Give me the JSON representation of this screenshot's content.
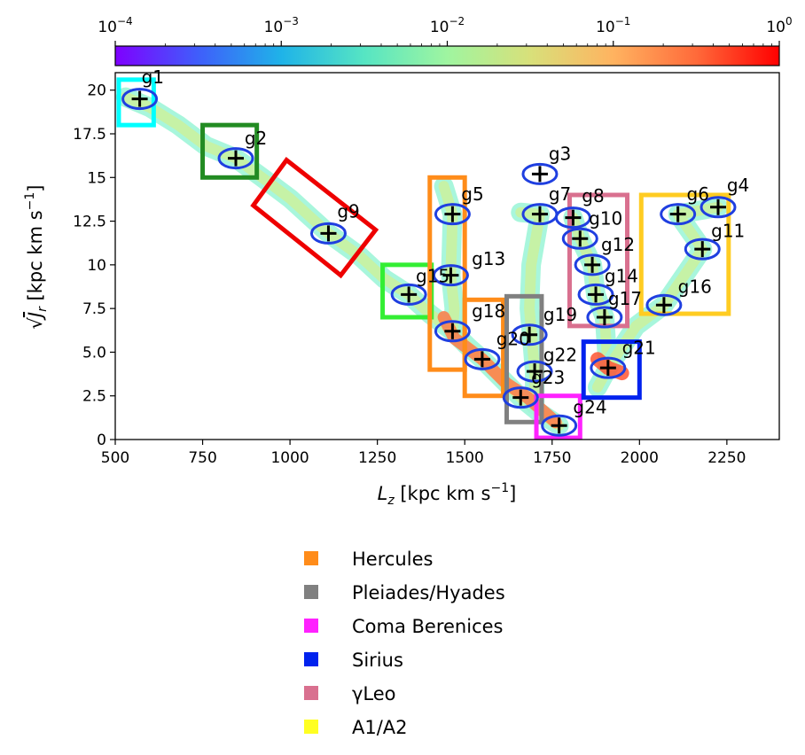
{
  "chart_data": {
    "type": "scatter",
    "xlabel": "L_z [kpc km s^-1]",
    "ylabel": "sqrt(J_r) [kpc km s^-1]",
    "xlim": [
      500,
      2400
    ],
    "ylim": [
      0,
      21
    ],
    "x_ticks": [
      500,
      750,
      1000,
      1250,
      1500,
      1750,
      2000,
      2250
    ],
    "y_ticks": [
      0,
      2.5,
      5.0,
      7.5,
      10,
      12.5,
      15,
      17.5,
      20
    ],
    "colorbar": {
      "scale": "log",
      "range": [
        0.0001,
        1
      ],
      "tick_labels": [
        {
          "base": "10",
          "exp": "−4",
          "value": 0.0001
        },
        {
          "base": "10",
          "exp": "−3",
          "value": 0.001
        },
        {
          "base": "10",
          "exp": "−2",
          "value": 0.01
        },
        {
          "base": "10",
          "exp": "−1",
          "value": 0.1
        },
        {
          "base": "10",
          "exp": "0",
          "value": 1
        }
      ],
      "colors": [
        "#7f00ff",
        "#3f5efb",
        "#1fb3e8",
        "#56e5c3",
        "#9ff5a0",
        "#d8e07a",
        "#ffb360",
        "#ff6a3a",
        "#ff0000"
      ]
    },
    "groups": [
      {
        "label": "g1",
        "x": 570,
        "y": 19.5,
        "lx": 575,
        "ly": 20.4
      },
      {
        "label": "g2",
        "x": 845,
        "y": 16.1,
        "lx": 870,
        "ly": 16.9
      },
      {
        "label": "g3",
        "x": 1715,
        "y": 15.2,
        "lx": 1740,
        "ly": 16.0
      },
      {
        "label": "g4",
        "x": 2225,
        "y": 13.3,
        "lx": 2250,
        "ly": 14.2
      },
      {
        "label": "g5",
        "x": 1465,
        "y": 12.9,
        "lx": 1490,
        "ly": 13.7
      },
      {
        "label": "g6",
        "x": 2110,
        "y": 12.9,
        "lx": 2135,
        "ly": 13.7
      },
      {
        "label": "g7",
        "x": 1715,
        "y": 12.9,
        "lx": 1740,
        "ly": 13.7
      },
      {
        "label": "g8",
        "x": 1810,
        "y": 12.7,
        "lx": 1835,
        "ly": 13.6
      },
      {
        "label": "g9",
        "x": 1110,
        "y": 11.8,
        "lx": 1135,
        "ly": 12.7
      },
      {
        "label": "g10",
        "x": 1830,
        "y": 11.5,
        "lx": 1855,
        "ly": 12.3
      },
      {
        "label": "g11",
        "x": 2180,
        "y": 10.9,
        "lx": 2205,
        "ly": 11.6
      },
      {
        "label": "g12",
        "x": 1865,
        "y": 10.0,
        "lx": 1890,
        "ly": 10.8
      },
      {
        "label": "g13",
        "x": 1460,
        "y": 9.4,
        "lx": 1520,
        "ly": 10.0
      },
      {
        "label": "g14",
        "x": 1875,
        "y": 8.3,
        "lx": 1900,
        "ly": 9.0
      },
      {
        "label": "g15",
        "x": 1340,
        "y": 8.3,
        "lx": 1360,
        "ly": 9.0
      },
      {
        "label": "g16",
        "x": 2070,
        "y": 7.7,
        "lx": 2110,
        "ly": 8.4
      },
      {
        "label": "g17",
        "x": 1900,
        "y": 7.0,
        "lx": 1910,
        "ly": 7.7
      },
      {
        "label": "g18",
        "x": 1465,
        "y": 6.2,
        "lx": 1520,
        "ly": 7.0
      },
      {
        "label": "g19",
        "x": 1685,
        "y": 6.0,
        "lx": 1725,
        "ly": 6.8
      },
      {
        "label": "g20",
        "x": 1550,
        "y": 4.6,
        "lx": 1590,
        "ly": 5.4
      },
      {
        "label": "g21",
        "x": 1910,
        "y": 4.1,
        "lx": 1950,
        "ly": 4.9
      },
      {
        "label": "g22",
        "x": 1700,
        "y": 3.9,
        "lx": 1725,
        "ly": 4.5
      },
      {
        "label": "g23",
        "x": 1660,
        "y": 2.4,
        "lx": 1690,
        "ly": 3.2
      },
      {
        "label": "g24",
        "x": 1770,
        "y": 0.8,
        "lx": 1810,
        "ly": 1.5
      }
    ],
    "boxes": [
      {
        "name": "g1-box",
        "color": "#00ffff",
        "x0": 510,
        "x1": 610,
        "y0": 18.0,
        "y1": 20.6
      },
      {
        "name": "g2-box",
        "color": "#228b22",
        "x0": 750,
        "x1": 905,
        "y0": 15.0,
        "y1": 18.0
      },
      {
        "name": "g9-box",
        "color": "#ee0000",
        "rotated": true,
        "corners": [
          [
            990,
            16.0
          ],
          [
            1245,
            12.0
          ],
          [
            1145,
            9.4
          ],
          [
            895,
            13.4
          ]
        ]
      },
      {
        "name": "g15-box",
        "color": "#33ee33",
        "x0": 1265,
        "x1": 1405,
        "y0": 7.0,
        "y1": 10.0
      },
      {
        "name": "hercules-box-1",
        "color": "#ff8c1a",
        "x0": 1400,
        "x1": 1500,
        "y0": 4.0,
        "y1": 15.0
      },
      {
        "name": "hercules-box-2",
        "color": "#ff8c1a",
        "x0": 1500,
        "x1": 1610,
        "y0": 2.5,
        "y1": 8.0
      },
      {
        "name": "pleiades-box",
        "color": "#808080",
        "x0": 1620,
        "x1": 1720,
        "y0": 1.0,
        "y1": 8.2
      },
      {
        "name": "coma-box",
        "color": "#ff22ff",
        "x0": 1705,
        "x1": 1830,
        "y0": 0.1,
        "y1": 2.5
      },
      {
        "name": "sirius-box",
        "color": "#0022ee",
        "x0": 1840,
        "x1": 2000,
        "y0": 2.4,
        "y1": 5.6
      },
      {
        "name": "gleo-box",
        "color": "#d9708f",
        "x0": 1800,
        "x1": 1965,
        "y0": 6.5,
        "y1": 14.0
      },
      {
        "name": "a1a2-box",
        "color": "#ffcc22",
        "x0": 2005,
        "x1": 2255,
        "y0": 7.2,
        "y1": 14.0
      }
    ],
    "legend": [
      {
        "label": "Hercules",
        "color": "#ff8c1a"
      },
      {
        "label": "Pleiades/Hyades",
        "color": "#808080"
      },
      {
        "label": "Coma Berenices",
        "color": "#ff22ff"
      },
      {
        "label": "Sirius",
        "color": "#0022ee"
      },
      {
        "label": "γLeo",
        "color": "#d9708f"
      },
      {
        "label": "A1/A2",
        "color": "#ffff22"
      }
    ],
    "density_ridge": [
      [
        530,
        19.6
      ],
      [
        600,
        19.0
      ],
      [
        680,
        18.0
      ],
      [
        760,
        16.8
      ],
      [
        845,
        16.1
      ],
      [
        920,
        15.0
      ],
      [
        1000,
        13.8
      ],
      [
        1110,
        11.8
      ],
      [
        1200,
        10.5
      ],
      [
        1270,
        9.2
      ],
      [
        1340,
        8.3
      ],
      [
        1400,
        7.2
      ],
      [
        1465,
        6.2
      ],
      [
        1510,
        5.3
      ],
      [
        1550,
        4.6
      ],
      [
        1600,
        3.6
      ],
      [
        1660,
        2.4
      ],
      [
        1710,
        1.6
      ],
      [
        1770,
        0.8
      ]
    ],
    "density_branches": [
      [
        [
          1440,
          14.5
        ],
        [
          1465,
          12.9
        ],
        [
          1460,
          9.4
        ],
        [
          1470,
          7.5
        ],
        [
          1465,
          6.2
        ]
      ],
      [
        [
          1660,
          13.0
        ],
        [
          1715,
          12.9
        ],
        [
          1690,
          10.0
        ],
        [
          1685,
          7.5
        ],
        [
          1700,
          3.9
        ],
        [
          1700,
          2.0
        ]
      ],
      [
        [
          1810,
          12.7
        ],
        [
          1830,
          11.5
        ],
        [
          1865,
          10.0
        ],
        [
          1875,
          8.3
        ],
        [
          1900,
          7.0
        ],
        [
          1910,
          4.1
        ],
        [
          1880,
          3.0
        ]
      ],
      [
        [
          2225,
          13.3
        ],
        [
          2110,
          12.9
        ],
        [
          2180,
          10.9
        ],
        [
          2070,
          7.7
        ],
        [
          1990,
          6.5
        ],
        [
          1910,
          4.1
        ]
      ]
    ]
  }
}
